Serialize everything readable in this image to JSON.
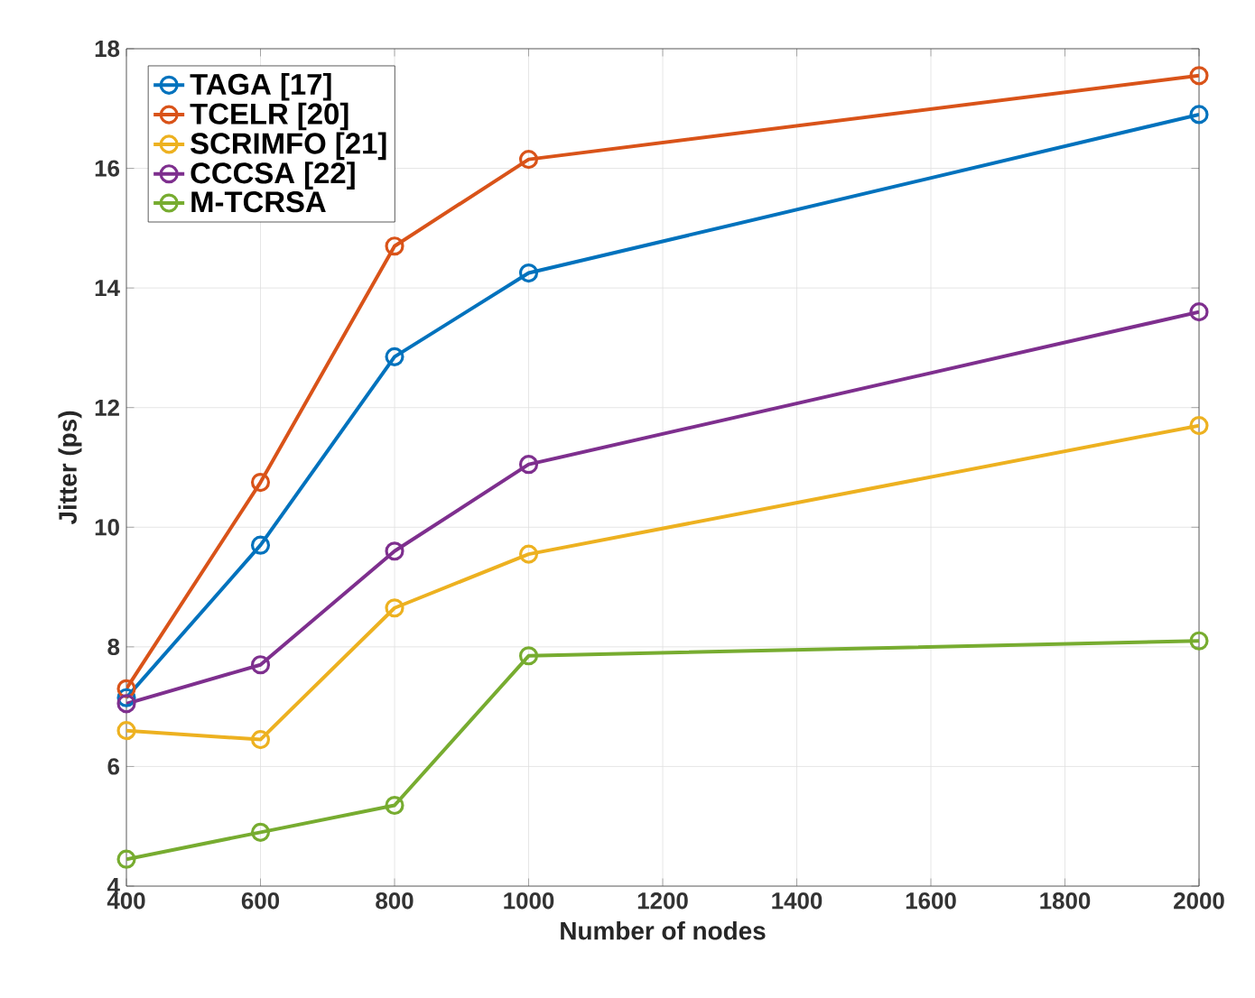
{
  "chart_data": {
    "type": "line",
    "xlabel": "Number of nodes",
    "ylabel": "Jitter (ps)",
    "x": [
      400,
      600,
      800,
      1000,
      2000
    ],
    "series": [
      {
        "name": "TAGA [17]",
        "color": "#0072bd",
        "values": [
          7.15,
          9.7,
          12.85,
          14.25,
          16.9
        ]
      },
      {
        "name": "TCELR [20]",
        "color": "#d95319",
        "values": [
          7.3,
          10.75,
          14.7,
          16.15,
          17.55
        ]
      },
      {
        "name": "SCRIMFO [21]",
        "color": "#edb120",
        "values": [
          6.6,
          6.45,
          8.65,
          9.55,
          11.7
        ]
      },
      {
        "name": "CCCSA [22]",
        "color": "#7e2f8e",
        "values": [
          7.05,
          7.7,
          9.6,
          11.05,
          13.6
        ]
      },
      {
        "name": "M-TCRSA",
        "color": "#77ac30",
        "values": [
          4.45,
          4.9,
          5.35,
          7.85,
          8.1
        ]
      }
    ],
    "xlim": [
      400,
      2000
    ],
    "xticks": [
      400,
      600,
      800,
      1000,
      1200,
      1400,
      1600,
      1800,
      2000
    ],
    "ylim": [
      4,
      18
    ],
    "yticks": [
      4,
      6,
      8,
      10,
      12,
      14,
      16,
      18
    ],
    "grid": true,
    "legend": "top left",
    "marker": "circle",
    "line_style": "solid"
  }
}
